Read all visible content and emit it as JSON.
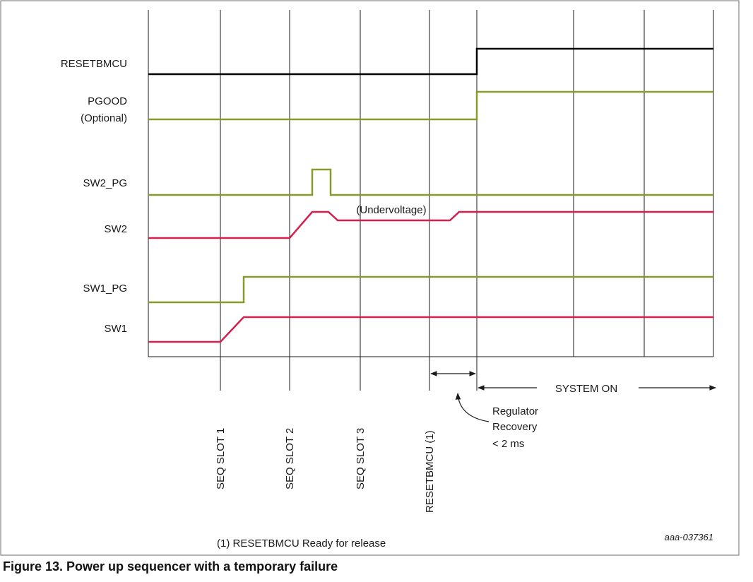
{
  "figure": {
    "caption": "Figure 13.  Power up sequencer with a temporary failure",
    "doc_id": "aaa-037361",
    "footnote": "(1) RESETBMCU Ready for release"
  },
  "colors": {
    "black_signal": "#000000",
    "pg_signal": "#8a9a2a",
    "sw_signal": "#d4204e",
    "grid": "#1a1a1a",
    "frame": "#555555"
  },
  "signals": [
    {
      "name": "RESETBMCU",
      "label": "RESETBMCU",
      "color": "black"
    },
    {
      "name": "PGOOD",
      "label": "PGOOD",
      "label2": "(Optional)",
      "color": "pg"
    },
    {
      "name": "SW2_PG",
      "label": "SW2_PG",
      "color": "pg"
    },
    {
      "name": "SW2",
      "label": "SW2",
      "color": "sw"
    },
    {
      "name": "SW1_PG",
      "label": "SW1_PG",
      "color": "pg"
    },
    {
      "name": "SW1",
      "label": "SW1",
      "color": "sw"
    }
  ],
  "slots": [
    {
      "label": "SEQ SLOT 1"
    },
    {
      "label": "SEQ SLOT 2"
    },
    {
      "label": "SEQ SLOT 3"
    },
    {
      "label": "RESETBMCU (1)"
    }
  ],
  "annotations": {
    "undervoltage": "(Undervoltage)",
    "system_on": "SYSTEM ON",
    "recovery_line1": "Regulator",
    "recovery_line2": "Recovery",
    "recovery_line3": "< 2 ms"
  }
}
